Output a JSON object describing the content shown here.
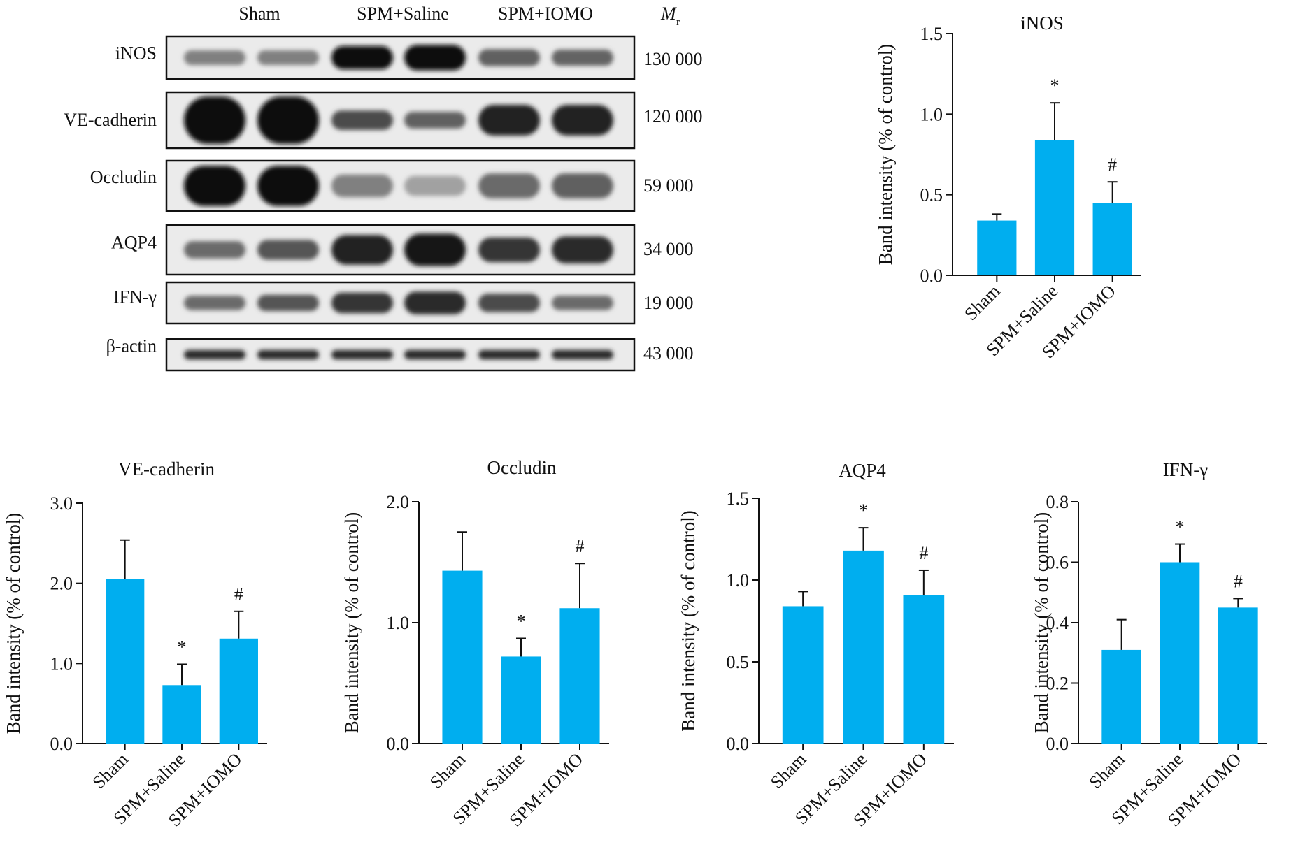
{
  "blot": {
    "lanes": [
      "Sham",
      "SPM+Saline",
      "SPM+IOMO"
    ],
    "mr_label": "M",
    "mr_sub": "r",
    "rows": [
      {
        "label": "iNOS",
        "mr": "130 000",
        "intensity": [
          0.45,
          0.45,
          1.0,
          1.0,
          0.6,
          0.58
        ],
        "thickness": [
          0.35,
          0.35,
          0.55,
          0.6,
          0.4,
          0.38
        ]
      },
      {
        "label": "VE-cadherin",
        "mr": "120 000",
        "intensity": [
          1.0,
          1.0,
          0.7,
          0.6,
          0.9,
          0.9
        ],
        "thickness": [
          0.85,
          0.85,
          0.35,
          0.3,
          0.55,
          0.55
        ]
      },
      {
        "label": "Occludin",
        "mr": "59 000",
        "intensity": [
          1.0,
          1.0,
          0.45,
          0.3,
          0.55,
          0.6
        ],
        "thickness": [
          0.8,
          0.8,
          0.45,
          0.4,
          0.5,
          0.5
        ]
      },
      {
        "label": "AQP4",
        "mr": "34 000",
        "intensity": [
          0.55,
          0.65,
          0.9,
          0.95,
          0.8,
          0.85
        ],
        "thickness": [
          0.35,
          0.4,
          0.6,
          0.65,
          0.5,
          0.55
        ]
      },
      {
        "label": "IFN-γ",
        "mr": "19 000",
        "intensity": [
          0.55,
          0.65,
          0.8,
          0.85,
          0.7,
          0.55
        ],
        "thickness": [
          0.35,
          0.4,
          0.5,
          0.55,
          0.45,
          0.35
        ]
      },
      {
        "label": "β-actin",
        "mr": "43 000",
        "intensity": [
          0.85,
          0.85,
          0.85,
          0.85,
          0.85,
          0.85
        ],
        "thickness": [
          0.3,
          0.3,
          0.3,
          0.3,
          0.3,
          0.3
        ]
      }
    ]
  },
  "bar_color": "#00AEEF",
  "chart_data": [
    {
      "type": "bar",
      "title": "iNOS",
      "ylabel": "Band intensity (% of control)",
      "categories": [
        "Sham",
        "SPM+Saline",
        "SPM+IOMO"
      ],
      "values": [
        0.34,
        0.84,
        0.45
      ],
      "errors": [
        0.04,
        0.23,
        0.13
      ],
      "annotations": [
        "",
        "*",
        "#"
      ],
      "ylim": [
        0,
        1.5
      ],
      "yticks": [
        "0.0",
        "0.5",
        "1.0",
        "1.5"
      ],
      "tick_values": [
        0,
        0.5,
        1.0,
        1.5
      ]
    },
    {
      "type": "bar",
      "title": "VE-cadherin",
      "ylabel": "Band intensity (% of control)",
      "categories": [
        "Sham",
        "SPM+Saline",
        "SPM+IOMO"
      ],
      "values": [
        2.05,
        0.73,
        1.31
      ],
      "errors": [
        0.49,
        0.26,
        0.34
      ],
      "annotations": [
        "",
        "*",
        "#"
      ],
      "ylim": [
        0,
        3.0
      ],
      "yticks": [
        "0.0",
        "1.0",
        "2.0",
        "3.0"
      ],
      "tick_values": [
        0,
        1.0,
        2.0,
        3.0
      ]
    },
    {
      "type": "bar",
      "title": "Occludin",
      "ylabel": "Band intensity (% of control)",
      "categories": [
        "Sham",
        "SPM+Saline",
        "SPM+IOMO"
      ],
      "values": [
        1.43,
        0.72,
        1.12
      ],
      "errors": [
        0.32,
        0.15,
        0.37
      ],
      "annotations": [
        "",
        "*",
        "#"
      ],
      "ylim": [
        0,
        2.0
      ],
      "yticks": [
        "0.0",
        "1.0",
        "2.0"
      ],
      "tick_values": [
        0,
        1.0,
        2.0
      ]
    },
    {
      "type": "bar",
      "title": "AQP4",
      "ylabel": "Band intensity (% of control)",
      "categories": [
        "Sham",
        "SPM+Saline",
        "SPM+IOMO"
      ],
      "values": [
        0.84,
        1.18,
        0.91
      ],
      "errors": [
        0.09,
        0.14,
        0.15
      ],
      "annotations": [
        "",
        "*",
        "#"
      ],
      "ylim": [
        0,
        1.5
      ],
      "yticks": [
        "0.0",
        "0.5",
        "1.0",
        "1.5"
      ],
      "tick_values": [
        0,
        0.5,
        1.0,
        1.5
      ]
    },
    {
      "type": "bar",
      "title": "IFN-γ",
      "ylabel": "Band intensity (% of control)",
      "categories": [
        "Sham",
        "SPM+Saline",
        "SPM+IOMO"
      ],
      "values": [
        0.31,
        0.6,
        0.45
      ],
      "errors": [
        0.1,
        0.06,
        0.03
      ],
      "annotations": [
        "",
        "*",
        "#"
      ],
      "ylim": [
        0,
        0.8
      ],
      "yticks": [
        "0.0",
        "0.2",
        "0.4",
        "0.6",
        "0.8"
      ],
      "tick_values": [
        0,
        0.2,
        0.4,
        0.6,
        0.8
      ]
    }
  ]
}
